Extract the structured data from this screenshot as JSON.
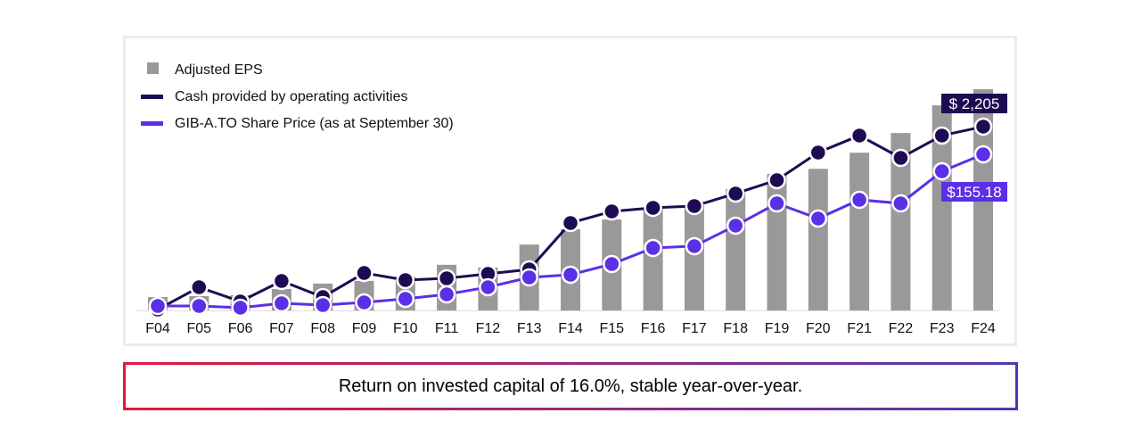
{
  "chart_data": {
    "type": "bar+line",
    "categories": [
      "F04",
      "F05",
      "F06",
      "F07",
      "F08",
      "F09",
      "F10",
      "F11",
      "F12",
      "F13",
      "F14",
      "F15",
      "F16",
      "F17",
      "F18",
      "F19",
      "F20",
      "F21",
      "F22",
      "F23",
      "F24"
    ],
    "legend_position": "top-left",
    "grid": false,
    "series": [
      {
        "name": "Adjusted EPS",
        "type": "bar",
        "color": "#999999",
        "ylim": [
          0,
          7.72
        ],
        "values": [
          0.45,
          0.48,
          0.51,
          0.72,
          0.9,
          0.99,
          1.14,
          1.53,
          1.44,
          2.21,
          2.72,
          3.05,
          3.44,
          3.53,
          4.07,
          4.58,
          4.75,
          5.29,
          5.95,
          6.88,
          7.42
        ]
      },
      {
        "name": "Cash provided by operating activities",
        "type": "line",
        "color": "#1e0b52",
        "ylim": [
          0,
          2761
        ],
        "values": [
          11,
          278,
          107,
          353,
          160,
          449,
          364,
          385,
          439,
          492,
          1049,
          1188,
          1231,
          1252,
          1402,
          1563,
          1894,
          2098,
          1830,
          2098,
          2205
        ],
        "end_label": "$ 2,205"
      },
      {
        "name": "GIB-A.TO Share Price (as at September 30)",
        "type": "line",
        "color": "#5b2fe6",
        "ylim": [
          0,
          228.8
        ],
        "values": [
          4.4,
          4.4,
          2.7,
          7.1,
          5.3,
          8.0,
          11.5,
          16.0,
          23.1,
          32.8,
          35.5,
          46.1,
          62.1,
          63.9,
          84.3,
          106.4,
          91.3,
          110.0,
          106.4,
          138.3,
          155.18
        ],
        "end_label": "$155.18"
      }
    ]
  },
  "footer": {
    "text": "Return on invested capital of 16.0%, stable year-over-year."
  }
}
